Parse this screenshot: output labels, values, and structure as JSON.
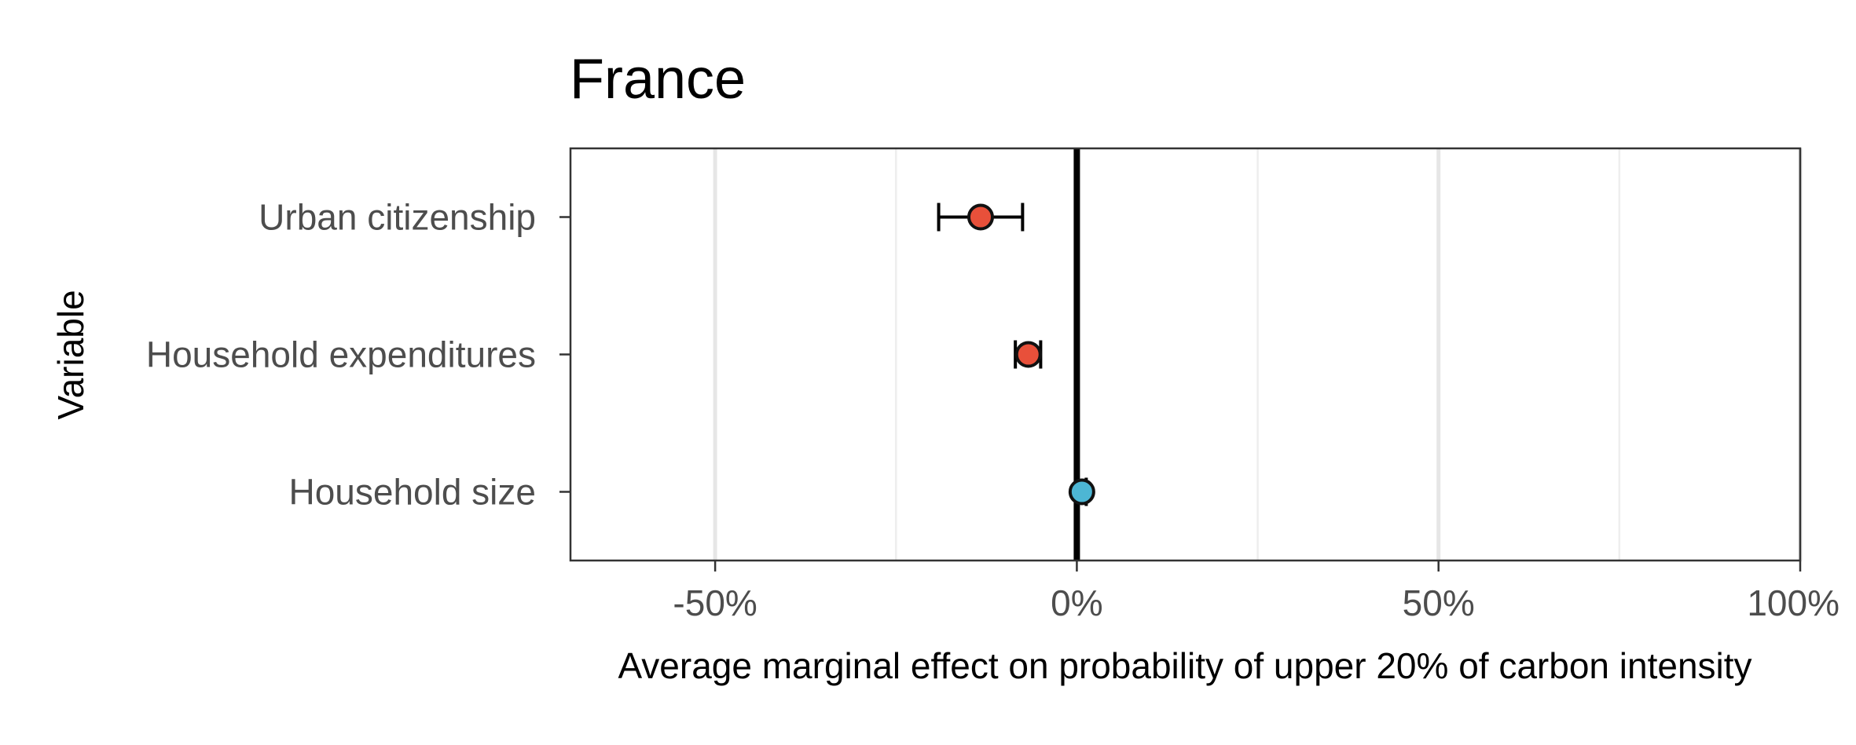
{
  "chart_data": {
    "type": "scatter",
    "title": "France",
    "xlabel": "Average marginal effect on probability of upper 20% of carbon intensity",
    "ylabel": "Variable",
    "xlim": [
      -0.7,
      1.0
    ],
    "x_ticks": [
      {
        "value": -0.5,
        "label": "-50%"
      },
      {
        "value": 0.0,
        "label": "0%"
      },
      {
        "value": 0.5,
        "label": "50%"
      },
      {
        "value": 1.0,
        "label": "100%"
      }
    ],
    "x_minor_gridlines": [
      -0.25,
      0.25,
      0.75
    ],
    "grid": true,
    "reference_line_x": 0,
    "categories": [
      "Urban citizenship",
      "Household expenditures",
      "Household size"
    ],
    "points": [
      {
        "variable": "Urban citizenship",
        "estimate": -0.133,
        "ci_low": -0.191,
        "ci_high": -0.075,
        "color": "#e8503a"
      },
      {
        "variable": "Household expenditures",
        "estimate": -0.067,
        "ci_low": -0.085,
        "ci_high": -0.05,
        "color": "#e8503a"
      },
      {
        "variable": "Household size",
        "estimate": 0.007,
        "ci_low": 0.0,
        "ci_high": 0.013,
        "color": "#4db6d4"
      }
    ],
    "legend": "none"
  }
}
